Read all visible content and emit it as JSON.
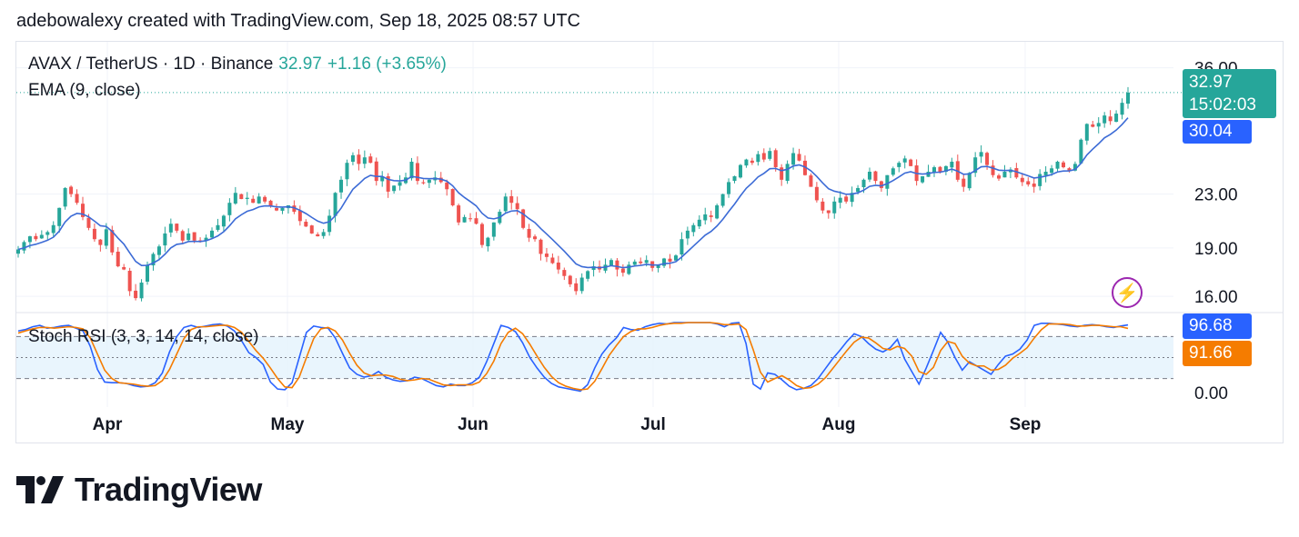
{
  "credit": "adebowalexy created with TradingView.com, Sep 18, 2025 08:57 UTC",
  "legend": {
    "symbol": "AVAX / TetherUS · 1D · Binance",
    "price": "32.97",
    "change": "+1.16 (+3.65%)",
    "ema": "EMA (9, close)",
    "oscillator": "Stoch RSI (3, 3, 14, 14, close)"
  },
  "tags": {
    "price": "32.97",
    "countdown": "15:02:03",
    "ema": "30.04",
    "k": "96.68",
    "d": "91.66"
  },
  "brand": "TradingView",
  "colors": {
    "up": "#26a69a",
    "down": "#ef5350",
    "ema": "#3c6bd6",
    "k": "#2962ff",
    "d": "#f57c00",
    "purple": "#9c27b0"
  },
  "chart_data": [
    {
      "type": "candlestick",
      "title": "AVAX / TetherUS · 1D · Binance",
      "y_ticks": [
        36.0,
        23.0,
        19.0,
        16.0
      ],
      "y_scale": "log",
      "ylim": [
        15.5,
        37.5
      ],
      "x_labels": [
        "Apr",
        "May",
        "Jun",
        "Jul",
        "Aug",
        "Sep"
      ],
      "series": [
        {
          "name": "EMA (9, close)",
          "last": 30.04
        }
      ],
      "closes": [
        18.9,
        19.4,
        19.8,
        19.6,
        19.9,
        20.1,
        20.6,
        21.9,
        23.5,
        23.0,
        22.3,
        21.2,
        20.4,
        19.6,
        19.2,
        20.3,
        18.7,
        17.8,
        17.6,
        16.3,
        15.9,
        16.8,
        17.9,
        18.6,
        19.1,
        20.0,
        20.7,
        20.2,
        19.5,
        20.0,
        19.5,
        19.4,
        19.7,
        20.2,
        20.6,
        21.3,
        22.3,
        23.1,
        22.6,
        22.7,
        22.3,
        22.8,
        22.4,
        22.0,
        21.7,
        21.9,
        22.1,
        21.6,
        20.9,
        20.5,
        20.0,
        19.8,
        20.1,
        21.3,
        23.1,
        24.2,
        25.7,
        26.4,
        25.6,
        26.2,
        25.7,
        24.1,
        24.5,
        23.2,
        23.7,
        24.0,
        24.4,
        25.8,
        24.1,
        23.9,
        24.2,
        24.4,
        24.0,
        23.4,
        22.1,
        20.8,
        21.2,
        21.1,
        20.7,
        19.2,
        19.7,
        20.8,
        21.6,
        22.8,
        22.3,
        21.8,
        20.4,
        19.7,
        19.6,
        18.6,
        18.4,
        18.0,
        17.6,
        17.2,
        16.7,
        16.3,
        17.1,
        17.5,
        17.8,
        17.6,
        17.9,
        18.2,
        17.6,
        17.4,
        17.9,
        18.1,
        18.0,
        18.2,
        17.7,
        17.9,
        18.3,
        18.1,
        18.5,
        19.6,
        20.2,
        20.6,
        21.0,
        21.4,
        21.2,
        22.1,
        23.0,
        24.0,
        24.5,
        25.5,
        26.0,
        25.7,
        26.5,
        26.0,
        26.8,
        25.3,
        24.2,
        25.6,
        26.6,
        25.9,
        24.6,
        23.6,
        22.5,
        21.7,
        21.5,
        22.4,
        22.7,
        22.4,
        23.1,
        23.5,
        24.2,
        24.9,
        24.1,
        23.5,
        24.6,
        25.2,
        25.7,
        26.1,
        25.4,
        24.1,
        24.5,
        24.9,
        25.3,
        24.9,
        25.4,
        25.8,
        24.2,
        23.6,
        24.8,
        26.2,
        26.7,
        25.5,
        24.6,
        24.3,
        24.9,
        25.1,
        24.4,
        24.0,
        23.8,
        23.6,
        24.7,
        24.9,
        25.2,
        25.8,
        25.3,
        25.0,
        25.6,
        27.9,
        29.5,
        29.2,
        29.6,
        30.4,
        29.8,
        30.6,
        31.8,
        32.97
      ],
      "ema_is_computed": true
    },
    {
      "type": "line",
      "title": "Stoch RSI (3, 3, 14, 14, close)",
      "y_ticks": [
        0.0
      ],
      "ylim": [
        0,
        100
      ],
      "bands": [
        20,
        50,
        80
      ],
      "series": [
        {
          "name": "K",
          "last": 96.68,
          "values": [
            88,
            90,
            94,
            96,
            92,
            93,
            95,
            96,
            92,
            88,
            66,
            33,
            15,
            14,
            14,
            13,
            10,
            8,
            9,
            14,
            28,
            58,
            80,
            93,
            96,
            93,
            95,
            97,
            98,
            95,
            88,
            74,
            57,
            50,
            40,
            15,
            5,
            4,
            14,
            50,
            86,
            95,
            93,
            92,
            78,
            56,
            35,
            26,
            22,
            24,
            30,
            22,
            18,
            16,
            17,
            22,
            20,
            15,
            10,
            8,
            12,
            10,
            10,
            14,
            22,
            44,
            70,
            96,
            93,
            87,
            71,
            50,
            35,
            22,
            13,
            8,
            6,
            4,
            2,
            11,
            35,
            55,
            68,
            78,
            93,
            90,
            89,
            94,
            97,
            99,
            98,
            100,
            100,
            100,
            100,
            100,
            100,
            98,
            94,
            99,
            100,
            70,
            12,
            5,
            28,
            26,
            18,
            9,
            4,
            6,
            10,
            20,
            34,
            48,
            60,
            73,
            84,
            80,
            70,
            62,
            58,
            64,
            76,
            48,
            30,
            12,
            35,
            60,
            86,
            72,
            50,
            32,
            44,
            38,
            32,
            26,
            40,
            52,
            55,
            62,
            75,
            96,
            99,
            99,
            98,
            97,
            95,
            94,
            96,
            97,
            96,
            94,
            93,
            95,
            96.68
          ]
        },
        {
          "name": "D",
          "last": 91.66,
          "values": [
            85,
            88,
            91,
            93,
            93,
            92,
            93,
            94,
            93,
            91,
            78,
            55,
            32,
            20,
            14,
            13,
            12,
            10,
            9,
            10,
            17,
            33,
            55,
            77,
            90,
            94,
            94,
            95,
            96,
            96,
            93,
            86,
            73,
            60,
            49,
            35,
            20,
            8,
            7,
            22,
            50,
            77,
            91,
            93,
            88,
            75,
            56,
            39,
            28,
            24,
            25,
            25,
            23,
            19,
            17,
            18,
            20,
            19,
            15,
            11,
            10,
            11,
            11,
            11,
            15,
            27,
            45,
            70,
            86,
            92,
            84,
            69,
            52,
            36,
            23,
            14,
            9,
            6,
            4,
            5,
            16,
            34,
            53,
            67,
            80,
            87,
            91,
            91,
            93,
            96,
            98,
            99,
            99,
            100,
            100,
            100,
            100,
            99,
            97,
            97,
            98,
            90,
            61,
            29,
            15,
            20,
            24,
            18,
            10,
            6,
            7,
            12,
            21,
            34,
            47,
            60,
            72,
            79,
            78,
            71,
            63,
            61,
            66,
            63,
            52,
            30,
            26,
            36,
            60,
            73,
            70,
            52,
            42,
            38,
            38,
            32,
            33,
            39,
            49,
            56,
            64,
            78,
            90,
            98,
            98,
            98,
            97,
            95,
            95,
            96,
            96,
            95,
            94,
            94,
            91.66
          ]
        }
      ]
    }
  ]
}
